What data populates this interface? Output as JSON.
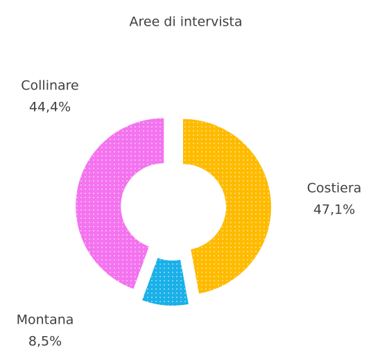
{
  "chart_data": {
    "type": "donut",
    "title": "Aree di intervista",
    "categories": [
      "Costiera",
      "Montana",
      "Collinare"
    ],
    "values": [
      47.1,
      8.5,
      44.4
    ],
    "value_labels": [
      "47,1%",
      "8,5%",
      "44,4%"
    ],
    "colors": [
      "#ffbb00",
      "#1ab0e8",
      "#f473ef"
    ]
  }
}
